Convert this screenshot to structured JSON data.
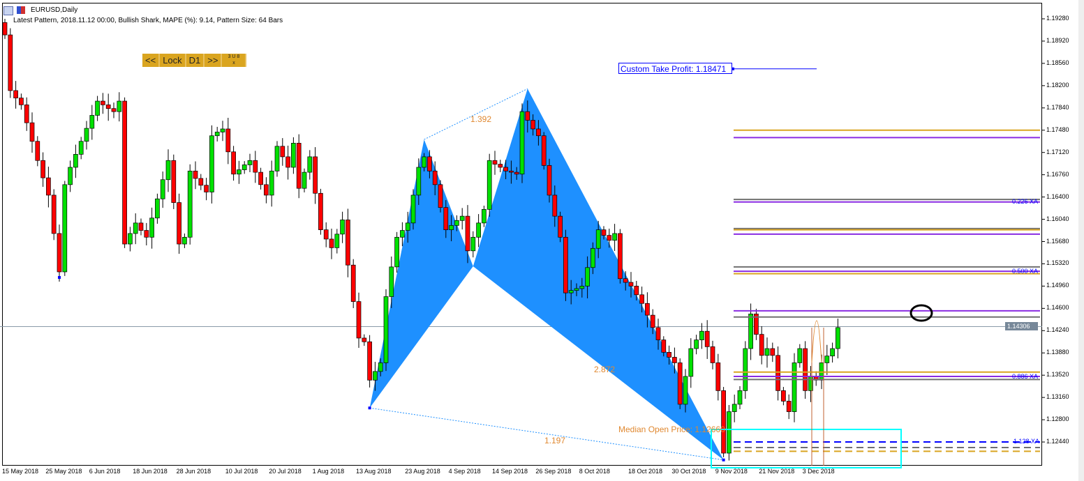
{
  "window": {
    "title": "EURUSD,Daily",
    "info": "Latest Pattern, 2018.11.12 00:00, Bullish Shark, MAPE (%): 9.14, Pattern Size: 64 Bars"
  },
  "nav": {
    "prev": "<<",
    "lock": "Lock",
    "tf": "D1",
    "next": ">>",
    "mini_top": "3 U 8",
    "mini_close": "x"
  },
  "colors": {
    "bull": "#00E000",
    "bear": "#FF0000",
    "pattern": "#1E90FF",
    "orange": "#DAA520",
    "purple": "#8A2BE2",
    "gray": "#707070",
    "blue": "#0000FF",
    "cyan": "#00FFFF"
  },
  "take_profit": {
    "label": "Custom Take Profit: 1.18471",
    "price": 1.18471
  },
  "median": {
    "label": "Median Open Price: 1.12660"
  },
  "ratios": {
    "ac": "1.392",
    "bd": "2.872",
    "xd": "1.197"
  },
  "current_price": {
    "label": "1.14306",
    "price": 1.14306
  },
  "xa_labels": [
    "0.226 XA",
    "0.500 XA",
    "0.886 XA",
    "1.128 XA"
  ],
  "price_axis": [
    "1.19280",
    "1.18920",
    "1.18560",
    "1.18200",
    "1.17840",
    "1.17480",
    "1.17120",
    "1.16760",
    "1.16400",
    "1.16040",
    "1.15680",
    "1.15320",
    "1.14960",
    "1.14600",
    "1.14240",
    "1.13880",
    "1.13520",
    "1.13160",
    "1.12800",
    "1.12440"
  ],
  "date_axis": [
    {
      "label": "15 May 2018",
      "bar": 0
    },
    {
      "label": "25 May 2018",
      "bar": 8
    },
    {
      "label": "6 Jun 2018",
      "bar": 16
    },
    {
      "label": "18 Jun 2018",
      "bar": 24
    },
    {
      "label": "28 Jun 2018",
      "bar": 32
    },
    {
      "label": "10 Jul 2018",
      "bar": 41
    },
    {
      "label": "20 Jul 2018",
      "bar": 49
    },
    {
      "label": "1 Aug 2018",
      "bar": 57
    },
    {
      "label": "13 Aug 2018",
      "bar": 65
    },
    {
      "label": "23 Aug 2018",
      "bar": 74
    },
    {
      "label": "4 Sep 2018",
      "bar": 82
    },
    {
      "label": "14 Sep 2018",
      "bar": 90
    },
    {
      "label": "26 Sep 2018",
      "bar": 98
    },
    {
      "label": "8 Oct 2018",
      "bar": 106
    },
    {
      "label": "18 Oct 2018",
      "bar": 115
    },
    {
      "label": "30 Oct 2018",
      "bar": 123
    },
    {
      "label": "9 Nov 2018",
      "bar": 131
    },
    {
      "label": "21 Nov 2018",
      "bar": 139
    },
    {
      "label": "3 Dec 2018",
      "bar": 147
    }
  ],
  "chart_data": {
    "type": "candlestick",
    "symbol": "EURUSD",
    "timeframe": "Daily",
    "ylim": [
      1.1215,
      1.196
    ],
    "closes": [
      1.1902,
      1.1812,
      1.18,
      1.1789,
      1.176,
      1.173,
      1.1699,
      1.1671,
      1.1643,
      1.1581,
      1.1519,
      1.166,
      1.1688,
      1.1709,
      1.173,
      1.1751,
      1.1772,
      1.1795,
      1.1789,
      1.1783,
      1.1778,
      1.1795,
      1.1564,
      1.1581,
      1.1598,
      1.1586,
      1.1575,
      1.1606,
      1.1637,
      1.1668,
      1.1699,
      1.1631,
      1.1564,
      1.1575,
      1.1682,
      1.167,
      1.1659,
      1.1648,
      1.1739,
      1.1745,
      1.175,
      1.1713,
      1.1677,
      1.1684,
      1.1692,
      1.1699,
      1.168,
      1.166,
      1.1643,
      1.1682,
      1.1722,
      1.1705,
      1.1688,
      1.1727,
      1.1654,
      1.168,
      1.1705,
      1.1646,
      1.1587,
      1.1572,
      1.1558,
      1.158,
      1.1603,
      1.153,
      1.1471,
      1.1412,
      1.1406,
      1.1344,
      1.1358,
      1.1372,
      1.1479,
      1.1527,
      1.1575,
      1.1586,
      1.1598,
      1.1643,
      1.1688,
      1.1705,
      1.1682,
      1.166,
      1.1623,
      1.1587,
      1.1594,
      1.1602,
      1.1609,
      1.1553,
      1.1575,
      1.1598,
      1.162,
      1.1699,
      1.1693,
      1.1688,
      1.1682,
      1.168,
      1.1677,
      1.1778,
      1.1764,
      1.175,
      1.1739,
      1.1691,
      1.1643,
      1.1609,
      1.1575,
      1.1485,
      1.1489,
      1.1492,
      1.1496,
      1.1526,
      1.1557,
      1.1587,
      1.1578,
      1.157,
      1.1581,
      1.1508,
      1.1502,
      1.1496,
      1.1482,
      1.1468,
      1.1449,
      1.1429,
      1.1409,
      1.1389,
      1.1381,
      1.1372,
      1.1305,
      1.135,
      1.1395,
      1.1409,
      1.1423,
      1.1398,
      1.1372,
      1.1327,
      1.1226,
      1.1293,
      1.1305,
      1.1327,
      1.1395,
      1.1451,
      1.1418,
      1.1384,
      1.1395,
      1.1384,
      1.1327,
      1.131,
      1.1293,
      1.1372,
      1.1395,
      1.1327,
      1.135,
      1.1344,
      1.1372,
      1.1383,
      1.1395,
      1.1429
    ],
    "pattern": {
      "name": "Bullish Shark",
      "points": [
        {
          "id": "X",
          "bar": 67,
          "price": 1.1299
        },
        {
          "id": "A",
          "bar": 77,
          "price": 1.1733
        },
        {
          "id": "B",
          "bar": 86,
          "price": 1.1528
        },
        {
          "id": "C",
          "bar": 96,
          "price": 1.1815
        },
        {
          "id": "D",
          "bar": 132,
          "price": 1.1215
        }
      ]
    },
    "levels": [
      {
        "price": 1.1748,
        "color": "orange"
      },
      {
        "price": 1.1736,
        "color": "purple"
      },
      {
        "price": 1.1636,
        "color": "gray"
      },
      {
        "price": 1.1632,
        "color": "purple"
      },
      {
        "price": 1.1589,
        "color": "gray"
      },
      {
        "price": 1.1587,
        "color": "orange"
      },
      {
        "price": 1.158,
        "color": "purple"
      },
      {
        "price": 1.1527,
        "color": "gray"
      },
      {
        "price": 1.152,
        "color": "purple"
      },
      {
        "price": 1.1516,
        "color": "orange"
      },
      {
        "price": 1.1456,
        "color": "purple"
      },
      {
        "price": 1.1446,
        "color": "gray"
      },
      {
        "price": 1.1357,
        "color": "orange"
      },
      {
        "price": 1.135,
        "color": "purple"
      },
      {
        "price": 1.1345,
        "color": "gray"
      },
      {
        "price": 1.1244,
        "color": "blue",
        "dashed": true
      },
      {
        "price": 1.1235,
        "color": "gray",
        "dashed": true
      },
      {
        "price": 1.1229,
        "color": "orange",
        "dashed": true
      }
    ]
  }
}
